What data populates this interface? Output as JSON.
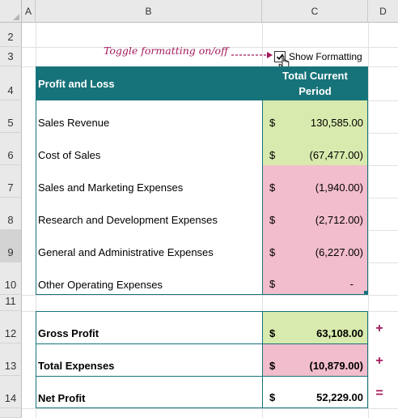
{
  "columns": [
    "A",
    "B",
    "C",
    "D"
  ],
  "rows": [
    "2",
    "3",
    "4",
    "5",
    "6",
    "7",
    "8",
    "9",
    "10",
    "11",
    "12",
    "13",
    "14"
  ],
  "annotation": "Toggle formatting on/off",
  "checkbox": {
    "label": "Show Formatting",
    "checked": true
  },
  "table": {
    "header_label": "Profit and Loss",
    "header_value_line1": "Total Current",
    "header_value_line2": "Period",
    "currency": "$",
    "lines": [
      {
        "label": "Sales Revenue",
        "value": "130,585.00",
        "color": "#d8eaad"
      },
      {
        "label": "Cost of Sales",
        "value": "(67,477.00)",
        "color": "#d8eaad"
      },
      {
        "label": "Sales and Marketing Expenses",
        "value": "(1,940.00)",
        "color": "#f2bdcc"
      },
      {
        "label": "Research and Development Expenses",
        "value": "(2,712.00)",
        "color": "#f2bdcc"
      },
      {
        "label": "General and Administrative Expenses",
        "value": "(6,227.00)",
        "color": "#f2bdcc"
      },
      {
        "label": "Other Operating Expenses",
        "value": "-",
        "color": "#f2bdcc"
      }
    ]
  },
  "summary": [
    {
      "label": "Gross Profit",
      "value": "63,108.00",
      "sign": "+",
      "color": "#d8eaad"
    },
    {
      "label": "Total Expenses",
      "value": "(10,879.00)",
      "sign": "+",
      "color": "#f2bdcc"
    },
    {
      "label": "Net Profit",
      "value": "52,229.00",
      "sign": "=",
      "color": "#ffffff"
    }
  ],
  "colors": {
    "header_teal": "#17737a",
    "accent_magenta": "#a3195b"
  }
}
